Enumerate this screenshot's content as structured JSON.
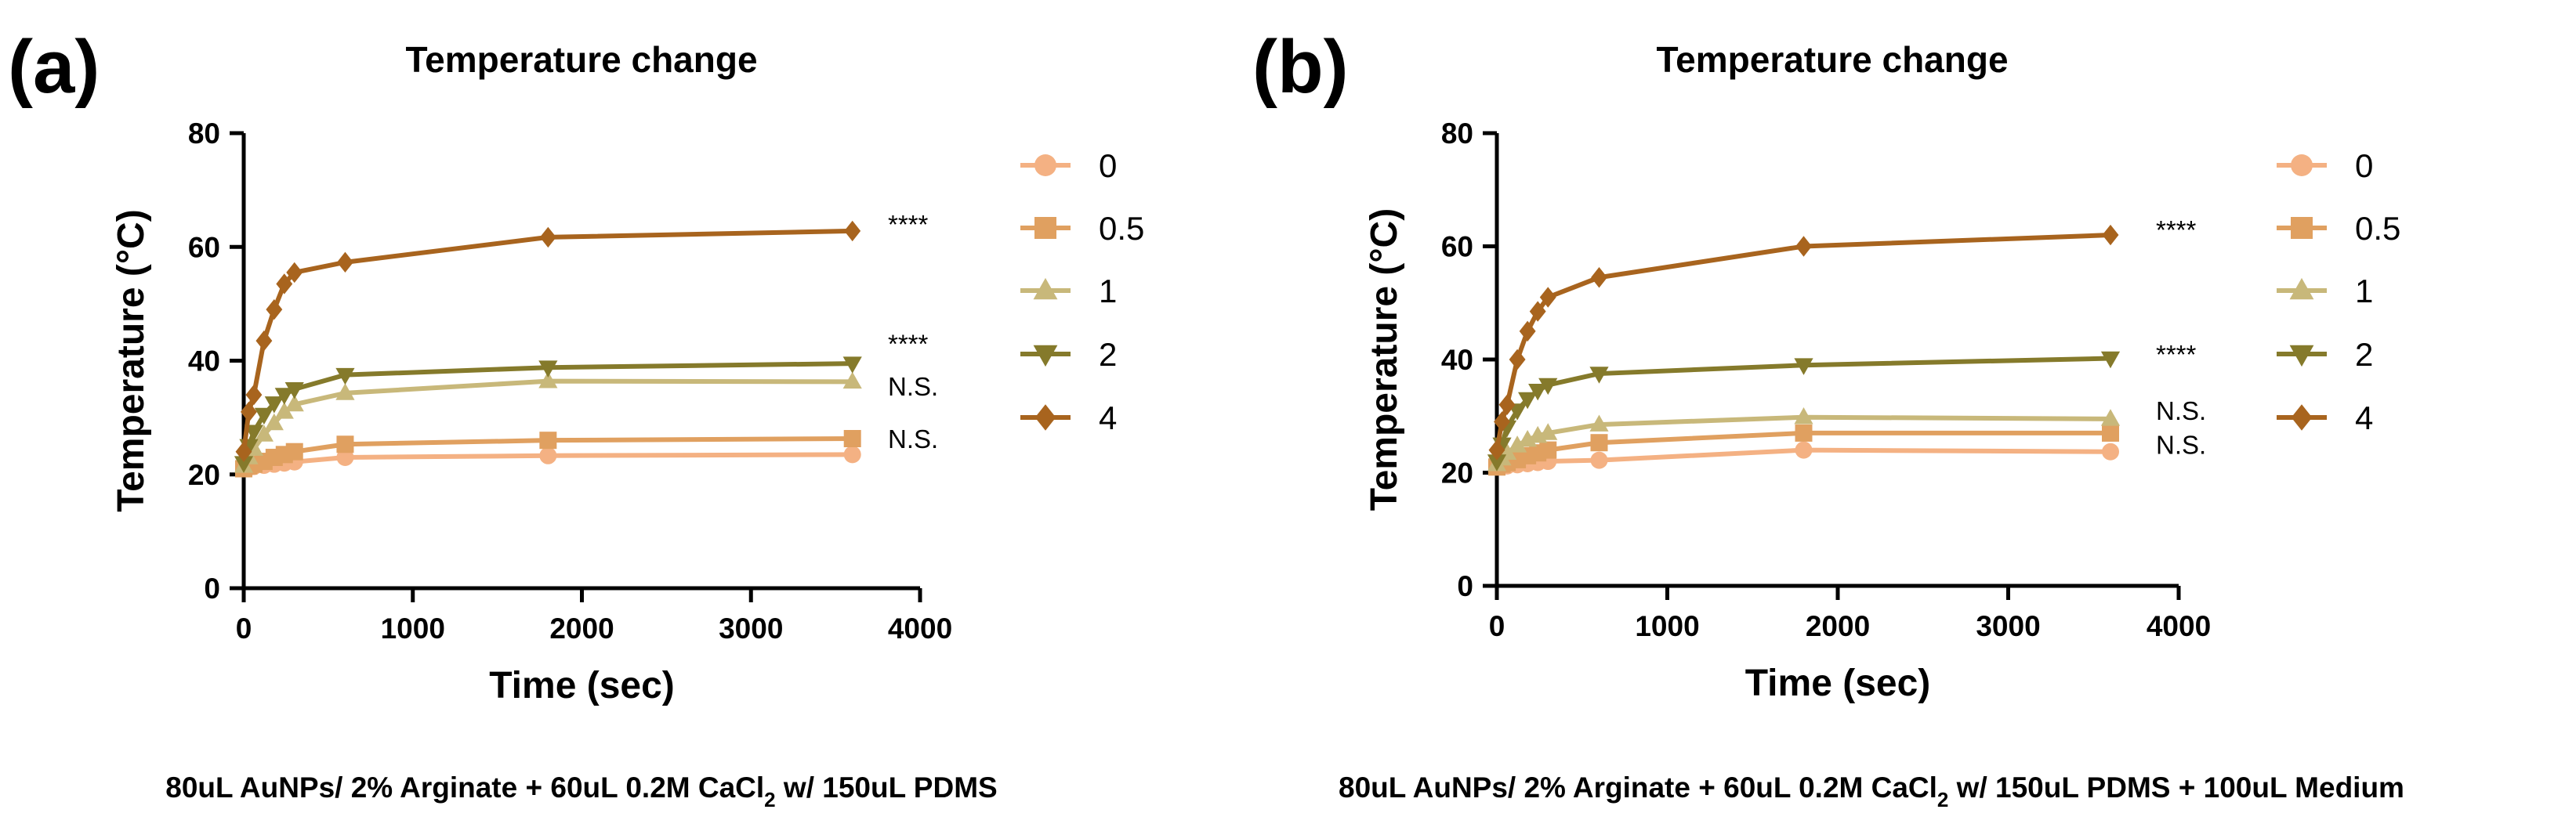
{
  "legend_labels": [
    "0",
    "0.5",
    "1",
    "2",
    "4"
  ],
  "chart_data": [
    {
      "type": "line",
      "panel_label": "(a)",
      "title": "Temperature change",
      "xlabel": "Time (sec)",
      "ylabel": "Temperature (°C)",
      "xlim": [
        0,
        4000
      ],
      "ylim": [
        0,
        80
      ],
      "xticks": [
        "0",
        "1000",
        "2000",
        "3000",
        "4000"
      ],
      "yticks": [
        "0",
        "20",
        "40",
        "60",
        "80"
      ],
      "x": [
        0,
        30,
        60,
        120,
        180,
        240,
        300,
        600,
        1800,
        3600
      ],
      "series": [
        {
          "name": "0",
          "color": "#F4B183",
          "marker": "circle",
          "values": [
            21,
            21.2,
            21.4,
            21.6,
            21.8,
            22,
            22.2,
            23,
            23.3,
            23.5
          ]
        },
        {
          "name": "0.5",
          "color": "#E0A060",
          "marker": "square",
          "values": [
            21,
            21.5,
            21.8,
            22.3,
            23,
            23.5,
            24,
            25.3,
            26,
            26.3
          ]
        },
        {
          "name": "1",
          "color": "#C8B87A",
          "marker": "triangle-up",
          "values": [
            21.5,
            23,
            24.5,
            27,
            29,
            31,
            32.3,
            34.3,
            36.4,
            36.3
          ]
        },
        {
          "name": "2",
          "color": "#857A2B",
          "marker": "triangle-down",
          "values": [
            22,
            25,
            27.5,
            30.5,
            32.5,
            34,
            35,
            37.5,
            38.8,
            39.5
          ]
        },
        {
          "name": "4",
          "color": "#A8641E",
          "marker": "diamond",
          "values": [
            24,
            31,
            34,
            43.5,
            49,
            53.5,
            55.5,
            57.3,
            61.7,
            62.8
          ]
        }
      ],
      "significance": [
        {
          "label": "****",
          "y": 64
        },
        {
          "label": "****",
          "y": 43
        },
        {
          "label": "N.S.",
          "y": 35.5
        },
        {
          "label": "N.S.",
          "y": 26.3
        }
      ],
      "caption": {
        "main": "80uL AuNPs/ 2% Arginate + 60uL 0.2M CaCl",
        "sub": "2",
        "tail": " w/ 150uL PDMS"
      }
    },
    {
      "type": "line",
      "panel_label": "(b)",
      "title": "Temperature change",
      "xlabel": "Time (sec)",
      "ylabel": "Temperature (°C)",
      "xlim": [
        0,
        4000
      ],
      "ylim": [
        0,
        80
      ],
      "xticks": [
        "0",
        "1000",
        "2000",
        "3000",
        "4000"
      ],
      "yticks": [
        "0",
        "20",
        "40",
        "60",
        "80"
      ],
      "x": [
        0,
        30,
        60,
        120,
        180,
        240,
        300,
        600,
        1800,
        3600
      ],
      "series": [
        {
          "name": "0",
          "color": "#F4B183",
          "marker": "circle",
          "values": [
            21,
            21.1,
            21.2,
            21.4,
            21.6,
            21.8,
            22,
            22.2,
            24,
            23.7
          ]
        },
        {
          "name": "0.5",
          "color": "#E0A060",
          "marker": "square",
          "values": [
            21,
            21.5,
            21.8,
            22.3,
            23,
            23.5,
            24,
            25.3,
            27,
            27
          ]
        },
        {
          "name": "1",
          "color": "#C8B87A",
          "marker": "triangle-up",
          "values": [
            21.5,
            22.5,
            23.5,
            24.8,
            25.8,
            26.5,
            27,
            28.5,
            29.8,
            29.5
          ]
        },
        {
          "name": "2",
          "color": "#857A2B",
          "marker": "triangle-down",
          "values": [
            22,
            25,
            28,
            31,
            33,
            34.5,
            35.5,
            37.5,
            39,
            40.2
          ]
        },
        {
          "name": "4",
          "color": "#A8641E",
          "marker": "diamond",
          "values": [
            24,
            29,
            32,
            40,
            45,
            48.5,
            51,
            54.5,
            60,
            62
          ]
        }
      ],
      "significance": [
        {
          "label": "****",
          "y": 63
        },
        {
          "label": "****",
          "y": 41
        },
        {
          "label": "N.S.",
          "y": 31
        },
        {
          "label": "N.S.",
          "y": 25
        }
      ],
      "caption": {
        "main": "80uL AuNPs/ 2% Arginate + 60uL 0.2M CaCl",
        "sub": "2",
        "tail": " w/ 150uL PDMS + 100uL Medium"
      }
    }
  ]
}
